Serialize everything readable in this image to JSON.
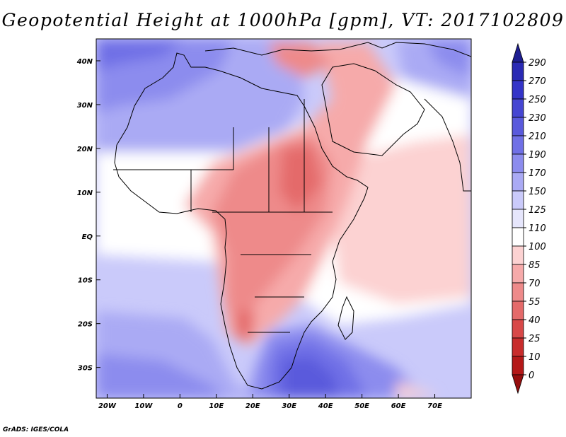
{
  "title": "Geopotential Height at 1000hPa [gpm], VT: 2017102809",
  "credit": "GrADS: IGES/COLA",
  "map": {
    "lon_range": [
      -23,
      80
    ],
    "lat_range": [
      -37,
      45
    ],
    "lat_ticks": [
      {
        "value": 40,
        "label": "40N"
      },
      {
        "value": 30,
        "label": "30N"
      },
      {
        "value": 20,
        "label": "20N"
      },
      {
        "value": 10,
        "label": "10N"
      },
      {
        "value": 0,
        "label": "EQ"
      },
      {
        "value": -10,
        "label": "10S"
      },
      {
        "value": -20,
        "label": "20S"
      },
      {
        "value": -30,
        "label": "30S"
      }
    ],
    "lon_ticks": [
      {
        "value": -20,
        "label": "20W"
      },
      {
        "value": -10,
        "label": "10W"
      },
      {
        "value": 0,
        "label": "0"
      },
      {
        "value": 10,
        "label": "10E"
      },
      {
        "value": 20,
        "label": "20E"
      },
      {
        "value": 30,
        "label": "30E"
      },
      {
        "value": 40,
        "label": "40E"
      },
      {
        "value": 50,
        "label": "50E"
      },
      {
        "value": 60,
        "label": "60E"
      },
      {
        "value": 70,
        "label": "70E"
      }
    ]
  },
  "colorbar": {
    "labels": [
      "290",
      "270",
      "250",
      "230",
      "210",
      "190",
      "170",
      "150",
      "125",
      "110",
      "100",
      "85",
      "70",
      "55",
      "40",
      "25",
      "10",
      "0"
    ],
    "colors": [
      "#1e1e91",
      "#2a2ab4",
      "#3434c8",
      "#4646d2",
      "#5a5adc",
      "#7070e6",
      "#8c8cee",
      "#aaaaf4",
      "#cacafa",
      "#e6e6fc",
      "#ffffff",
      "#fcd2d2",
      "#f6aaaa",
      "#ee8a8a",
      "#e46a6a",
      "#d84848",
      "#c82c2c",
      "#b41818",
      "#960e0e"
    ]
  }
}
